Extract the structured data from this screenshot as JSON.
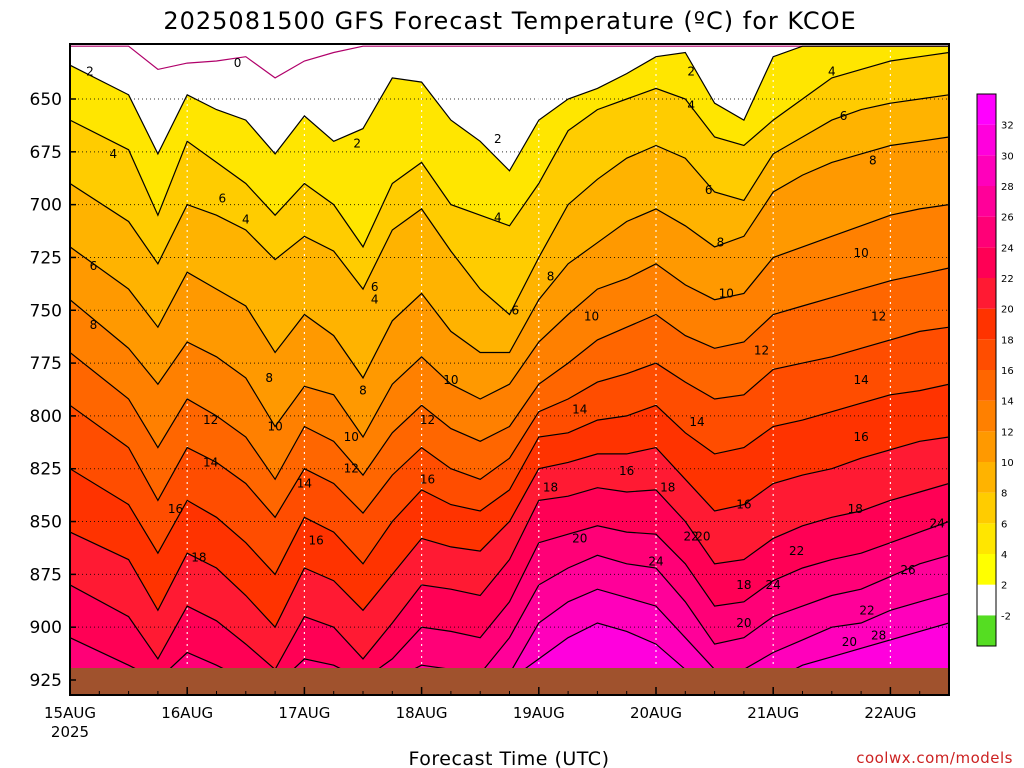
{
  "title": "2025081500 GFS Forecast Temperature (ºC) for KCOE",
  "credit": "coolwx.com/models",
  "chart_data": {
    "type": "heatmap",
    "title": "2025081500 GFS Forecast Temperature (ºC) for KCOE",
    "xlabel": "Forecast Time (UTC)",
    "ylabel": "",
    "y_axis": {
      "label_values": [
        650,
        675,
        700,
        725,
        750,
        775,
        800,
        825,
        850,
        875,
        900,
        925
      ],
      "inverted": true,
      "range": [
        625,
        935
      ]
    },
    "x_axis": {
      "tick_labels": [
        "15AUG",
        "16AUG",
        "17AUG",
        "18AUG",
        "19AUG",
        "20AUG",
        "21AUG",
        "22AUG"
      ],
      "first_tick_sublabel": "2025",
      "range_days": [
        0,
        7.5
      ]
    },
    "grid": true,
    "colorbar": {
      "placement": "right",
      "labels": [
        "-2",
        "2",
        "4",
        "6",
        "8",
        "10",
        "12",
        "14",
        "16",
        "18",
        "20",
        "22",
        "24",
        "26",
        "28",
        "30",
        "32"
      ],
      "colors": [
        "#55dd22",
        "#ffffff",
        "#ffff00",
        "#ffe600",
        "#ffcc00",
        "#ffb300",
        "#ff9900",
        "#ff8000",
        "#ff6600",
        "#ff4d00",
        "#ff3300",
        "#ff1a33",
        "#ff0055",
        "#ff0077",
        "#ff0099",
        "#ff00bb",
        "#ff00dd",
        "#ff00ff"
      ]
    },
    "times_days": [
      0.0,
      0.5,
      0.75,
      1.0,
      1.25,
      1.5,
      1.75,
      2.0,
      2.25,
      2.5,
      2.75,
      3.0,
      3.25,
      3.5,
      3.75,
      4.0,
      4.25,
      4.5,
      4.75,
      5.0,
      5.25,
      5.5,
      5.75,
      6.0,
      6.25,
      6.5,
      6.75,
      7.0,
      7.25,
      7.5
    ],
    "isotherms": [
      {
        "value": 0,
        "label_positions": [
          [
            1.43,
            633
          ]
        ],
        "pressures": [
          625,
          625,
          636,
          633,
          632,
          630,
          640,
          632,
          628,
          625,
          625,
          625,
          625,
          625,
          625,
          625,
          625,
          625,
          625,
          625,
          625,
          625,
          625,
          625,
          625,
          625,
          625,
          625,
          625,
          625
        ]
      },
      {
        "value": 2,
        "label_positions": [
          [
            0.17,
            637
          ],
          [
            2.45,
            671
          ],
          [
            3.65,
            669
          ],
          [
            5.3,
            637
          ]
        ],
        "pressures": [
          634,
          648,
          676,
          648,
          655,
          660,
          676,
          658,
          670,
          664,
          640,
          642,
          660,
          670,
          684,
          660,
          650,
          645,
          638,
          630,
          628,
          652,
          660,
          630,
          625,
          625,
          625,
          625,
          625,
          625
        ]
      },
      {
        "value": 4,
        "label_positions": [
          [
            0.37,
            676
          ],
          [
            1.5,
            707
          ],
          [
            2.6,
            745
          ],
          [
            3.65,
            706
          ],
          [
            5.3,
            653
          ],
          [
            6.5,
            637
          ]
        ],
        "pressures": [
          660,
          674,
          705,
          670,
          680,
          690,
          705,
          690,
          700,
          720,
          690,
          680,
          700,
          705,
          710,
          690,
          665,
          655,
          650,
          645,
          650,
          668,
          672,
          660,
          650,
          640,
          636,
          632,
          630,
          628
        ]
      },
      {
        "value": 6,
        "label_positions": [
          [
            0.2,
            729
          ],
          [
            1.3,
            697
          ],
          [
            2.6,
            739
          ],
          [
            3.8,
            750
          ],
          [
            5.45,
            693
          ],
          [
            6.6,
            658
          ]
        ],
        "pressures": [
          690,
          708,
          728,
          700,
          705,
          712,
          726,
          715,
          722,
          740,
          712,
          702,
          722,
          740,
          752,
          725,
          700,
          688,
          678,
          672,
          678,
          694,
          698,
          676,
          668,
          660,
          655,
          652,
          650,
          648
        ]
      },
      {
        "value": 8,
        "label_positions": [
          [
            0.2,
            757
          ],
          [
            1.7,
            782
          ],
          [
            2.5,
            788
          ],
          [
            4.1,
            734
          ],
          [
            5.55,
            718
          ],
          [
            6.85,
            679
          ]
        ],
        "pressures": [
          720,
          740,
          758,
          732,
          740,
          748,
          770,
          752,
          762,
          782,
          755,
          742,
          760,
          770,
          770,
          745,
          728,
          718,
          708,
          702,
          710,
          720,
          715,
          694,
          686,
          680,
          676,
          672,
          670,
          668
        ]
      },
      {
        "value": 10,
        "label_positions": [
          [
            1.75,
            805
          ],
          [
            2.4,
            810
          ],
          [
            3.25,
            783
          ],
          [
            4.45,
            753
          ],
          [
            5.6,
            742
          ],
          [
            6.75,
            723
          ]
        ],
        "pressures": [
          745,
          768,
          785,
          765,
          772,
          782,
          805,
          786,
          790,
          810,
          785,
          772,
          785,
          792,
          785,
          765,
          752,
          740,
          735,
          728,
          738,
          745,
          742,
          725,
          720,
          715,
          710,
          705,
          702,
          700
        ]
      },
      {
        "value": 12,
        "label_positions": [
          [
            1.2,
            802
          ],
          [
            2.4,
            825
          ],
          [
            3.05,
            802
          ],
          [
            5.9,
            769
          ],
          [
            6.9,
            753
          ]
        ],
        "pressures": [
          770,
          792,
          815,
          792,
          800,
          810,
          830,
          805,
          812,
          828,
          808,
          795,
          806,
          812,
          805,
          785,
          775,
          764,
          758,
          752,
          762,
          768,
          765,
          752,
          748,
          744,
          740,
          736,
          733,
          730
        ]
      },
      {
        "value": 14,
        "label_positions": [
          [
            1.2,
            822
          ],
          [
            2.0,
            832
          ],
          [
            4.35,
            797
          ],
          [
            5.35,
            803
          ],
          [
            6.75,
            783
          ]
        ],
        "pressures": [
          795,
          815,
          840,
          815,
          822,
          832,
          848,
          825,
          832,
          846,
          828,
          815,
          825,
          830,
          820,
          798,
          792,
          784,
          780,
          775,
          784,
          792,
          790,
          778,
          775,
          772,
          768,
          764,
          760,
          758
        ]
      },
      {
        "value": 16,
        "label_positions": [
          [
            0.9,
            844
          ],
          [
            2.1,
            859
          ],
          [
            3.05,
            830
          ],
          [
            4.75,
            826
          ],
          [
            5.75,
            842
          ],
          [
            6.75,
            810
          ]
        ],
        "pressures": [
          825,
          842,
          865,
          840,
          848,
          860,
          875,
          848,
          855,
          870,
          850,
          835,
          842,
          845,
          835,
          810,
          808,
          802,
          800,
          795,
          808,
          818,
          815,
          805,
          802,
          798,
          794,
          790,
          788,
          785
        ]
      },
      {
        "value": 18,
        "label_positions": [
          [
            1.1,
            867
          ],
          [
            4.1,
            834
          ],
          [
            5.1,
            834
          ],
          [
            5.75,
            880
          ],
          [
            6.7,
            844
          ]
        ],
        "pressures": [
          855,
          868,
          892,
          865,
          872,
          885,
          900,
          872,
          878,
          892,
          875,
          858,
          862,
          864,
          850,
          825,
          822,
          818,
          818,
          815,
          830,
          845,
          842,
          832,
          828,
          825,
          820,
          816,
          812,
          810
        ]
      },
      {
        "value": 20,
        "label_positions": [
          [
            4.35,
            858
          ],
          [
            5.4,
            857
          ],
          [
            5.75,
            898
          ],
          [
            6.65,
            907
          ]
        ],
        "pressures": [
          880,
          895,
          915,
          890,
          897,
          908,
          920,
          895,
          900,
          915,
          898,
          880,
          882,
          885,
          868,
          840,
          838,
          834,
          836,
          835,
          850,
          870,
          868,
          858,
          852,
          848,
          845,
          840,
          836,
          832
        ]
      },
      {
        "value": 22,
        "label_positions": [
          [
            5.3,
            857
          ],
          [
            6.2,
            864
          ],
          [
            6.8,
            892
          ]
        ],
        "pressures": [
          905,
          918,
          925,
          912,
          918,
          925,
          928,
          915,
          918,
          925,
          915,
          900,
          902,
          905,
          888,
          860,
          856,
          852,
          855,
          856,
          870,
          890,
          888,
          878,
          872,
          868,
          865,
          860,
          855,
          850
        ]
      },
      {
        "value": 24,
        "label_positions": [
          [
            5.0,
            869
          ],
          [
            6.0,
            880
          ],
          [
            7.4,
            851
          ]
        ],
        "pressures": [
          925,
          925,
          925,
          925,
          925,
          925,
          925,
          925,
          925,
          925,
          925,
          918,
          920,
          922,
          905,
          880,
          872,
          866,
          870,
          872,
          888,
          908,
          905,
          895,
          890,
          885,
          882,
          876,
          870,
          866
        ]
      },
      {
        "value": 26,
        "label_positions": [
          [
            7.15,
            873
          ]
        ],
        "pressures": [
          925,
          925,
          925,
          925,
          925,
          925,
          925,
          925,
          925,
          925,
          925,
          925,
          925,
          925,
          922,
          898,
          888,
          882,
          886,
          890,
          905,
          920,
          920,
          912,
          906,
          900,
          898,
          892,
          888,
          884
        ]
      },
      {
        "value": 28,
        "label_positions": [
          [
            6.9,
            904
          ]
        ],
        "pressures": [
          925,
          925,
          925,
          925,
          925,
          925,
          925,
          925,
          925,
          925,
          925,
          925,
          925,
          925,
          925,
          915,
          905,
          898,
          902,
          908,
          920,
          925,
          925,
          925,
          918,
          914,
          910,
          906,
          902,
          898
        ]
      }
    ]
  }
}
